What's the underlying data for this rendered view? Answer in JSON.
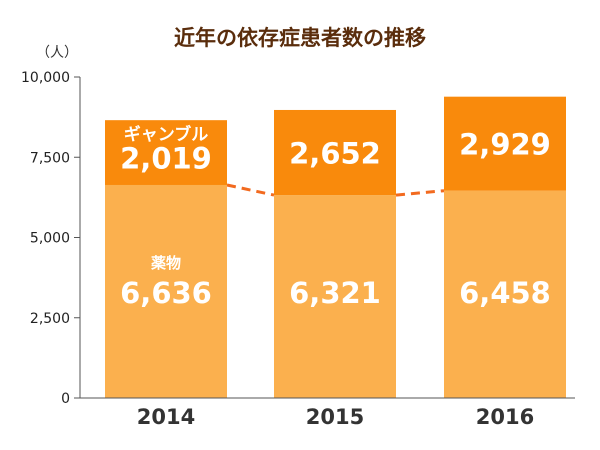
{
  "title": "近年の依存症患者数の推移",
  "unit": "（人）",
  "colors": {
    "bottom_series": "#fbb04e",
    "top_series": "#f98a0c",
    "connector": "#f26a1f",
    "axis": "#555555",
    "data_label": "#ffffff",
    "tick_text": "#222222",
    "category_text": "#333333"
  },
  "chart_data": {
    "type": "bar",
    "stacked": true,
    "title": "近年の依存症患者数の推移",
    "ylabel": "（人）",
    "xlabel": "",
    "categories": [
      "2014",
      "2015",
      "2016"
    ],
    "ylim": [
      0,
      10000
    ],
    "yticks": [
      0,
      2500,
      5000,
      7500,
      10000
    ],
    "ytick_labels": [
      "0",
      "2,500",
      "5,000",
      "7,500",
      "10,000"
    ],
    "grid": false,
    "legend": "none",
    "series": [
      {
        "name": "薬物",
        "values": [
          6636,
          6321,
          6458
        ],
        "value_labels": [
          "6,636",
          "6,321",
          "6,458"
        ]
      },
      {
        "name": "ギャンブル",
        "values": [
          2019,
          2652,
          2929
        ],
        "value_labels": [
          "2,019",
          "2,652",
          "2,929"
        ]
      }
    ],
    "annotations": [
      "ギャンブル",
      "薬物"
    ],
    "connector": "dashed line joining tops of bottom series"
  }
}
